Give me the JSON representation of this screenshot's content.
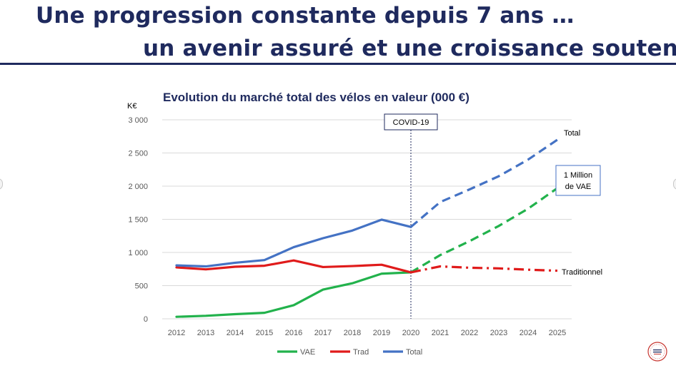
{
  "slide": {
    "title_line1": "Une progression constante depuis 7 ans …",
    "title_line2": "un avenir assuré et une croissance soutenue"
  },
  "colors": {
    "title": "#1f2a5e",
    "vae": "#22b24c",
    "trad": "#e01b1b",
    "total": "#4472c4",
    "grid": "#d9d9d9",
    "axis_text": "#595959",
    "covid_line": "#1f2a5e"
  },
  "chart_data": {
    "type": "line",
    "title": "Evolution du marché total des vélos en valeur (000 €)",
    "ylabel": "K€",
    "xlabel": "",
    "ylim": [
      0,
      3000
    ],
    "yticks": [
      0,
      500,
      1000,
      1500,
      2000,
      2500,
      3000
    ],
    "ytick_labels": [
      "0",
      "500",
      "1 000",
      "1 500",
      "2 000",
      "2 500",
      "3 000"
    ],
    "categories": [
      "2012",
      "2013",
      "2014",
      "2015",
      "2016",
      "2017",
      "2018",
      "2019",
      "2020",
      "2021",
      "2022",
      "2023",
      "2024",
      "2025"
    ],
    "forecast_from": "2020",
    "series": [
      {
        "name": "VAE",
        "color_key": "vae",
        "forecast_dash": "dash",
        "values": [
          30,
          45,
          70,
          90,
          205,
          440,
          535,
          680,
          700,
          960,
          1170,
          1400,
          1660,
          1970
        ]
      },
      {
        "name": "Trad",
        "color_key": "trad",
        "forecast_dash": "dashdot",
        "values": [
          775,
          745,
          785,
          800,
          880,
          780,
          795,
          815,
          700,
          790,
          770,
          760,
          740,
          725
        ]
      },
      {
        "name": "Total",
        "color_key": "total",
        "forecast_dash": "dash",
        "values": [
          805,
          790,
          845,
          885,
          1080,
          1215,
          1330,
          1495,
          1385,
          1760,
          1950,
          2150,
          2400,
          2700
        ]
      }
    ],
    "legend": [
      "VAE",
      "Trad",
      "Total"
    ],
    "legend_position": "bottom",
    "annotations": {
      "covid": {
        "label": "COVID-19",
        "x": "2020"
      },
      "total_label": "Total",
      "trad_label": "Traditionnel",
      "vae_box_line1": "1 Million",
      "vae_box_line2": "de VAE"
    }
  }
}
